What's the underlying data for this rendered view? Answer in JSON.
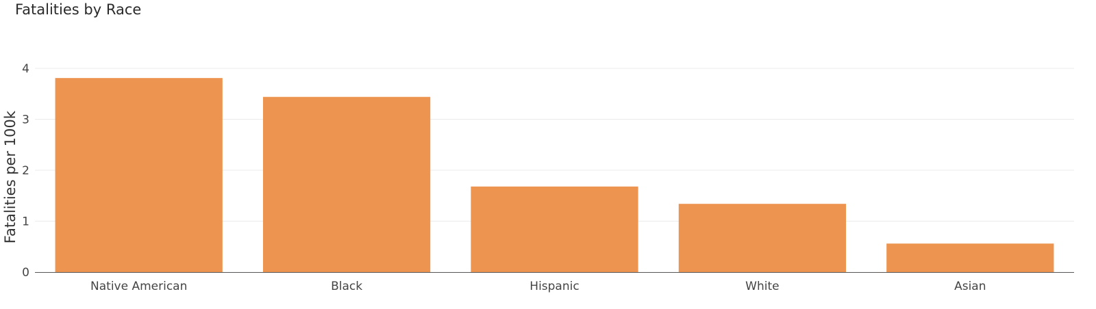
{
  "chart_data": {
    "type": "bar",
    "title": "Fatalities by Race",
    "xlabel": "",
    "ylabel": "Fatalities per 100k",
    "categories": [
      "Native American",
      "Black",
      "Hispanic",
      "White",
      "Asian"
    ],
    "values": [
      3.81,
      3.44,
      1.68,
      1.34,
      0.56
    ],
    "ylim": [
      0,
      4.4
    ],
    "yticks": [
      0,
      1,
      2,
      3,
      4
    ],
    "grid": true,
    "bar_color": "#ED9450",
    "grid_color": "#EBEBEB",
    "axis_color": "#555555"
  }
}
